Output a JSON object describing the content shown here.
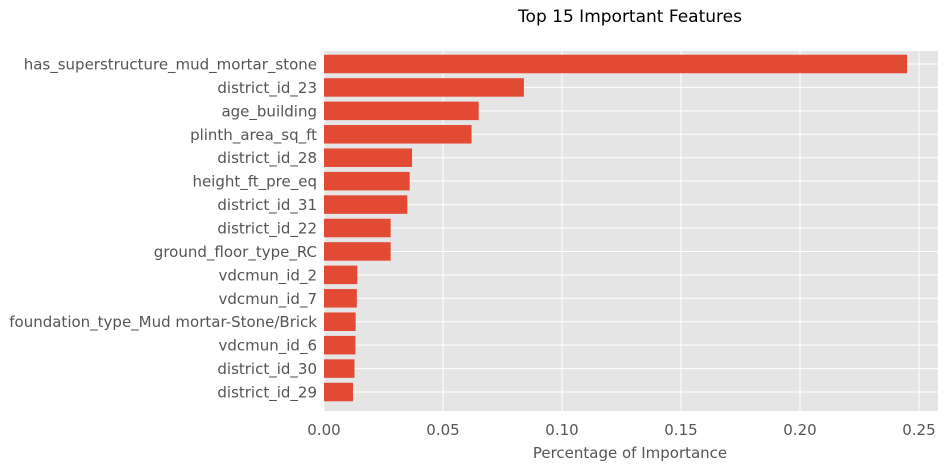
{
  "chart_data": {
    "type": "bar",
    "orientation": "horizontal",
    "title": "Top 15 Important Features",
    "xlabel": "Percentage of Importance",
    "ylabel": "",
    "xlim": [
      0,
      0.258
    ],
    "xticks": [
      "0.00",
      "0.05",
      "0.10",
      "0.15",
      "0.20",
      "0.25"
    ],
    "xtick_values": [
      0,
      0.05,
      0.1,
      0.15,
      0.2,
      0.25
    ],
    "grid": true,
    "bar_color": "#E24A33",
    "background_color": "#E5E5E5",
    "categories": [
      "has_superstructure_mud_mortar_stone",
      "district_id_23",
      "age_building",
      "plinth_area_sq_ft",
      "district_id_28",
      "height_ft_pre_eq",
      "district_id_31",
      "district_id_22",
      "ground_floor_type_RC",
      "vdcmun_id_2",
      "vdcmun_id_7",
      "foundation_type_Mud mortar-Stone/Brick",
      "vdcmun_id_6",
      "district_id_30",
      "district_id_29"
    ],
    "values": [
      0.245,
      0.084,
      0.065,
      0.062,
      0.037,
      0.036,
      0.035,
      0.028,
      0.028,
      0.014,
      0.0138,
      0.0133,
      0.0132,
      0.0128,
      0.0122
    ]
  }
}
